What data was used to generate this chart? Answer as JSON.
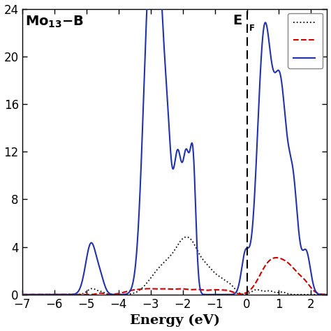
{
  "xlabel": "Energy (eV)",
  "xlim": [
    -7,
    2.5
  ],
  "ylim": [
    0,
    24
  ],
  "yticks": [
    0,
    4,
    8,
    12,
    16,
    20,
    24
  ],
  "xticks": [
    -7,
    -6,
    -5,
    -4,
    -3,
    -2,
    -1,
    0,
    1,
    2
  ],
  "ef_x": 0.0,
  "bg_color": "#ffffff",
  "line_black_color": "#111111",
  "line_red_color": "#cc0000",
  "line_blue_color": "#2233aa",
  "figsize": [
    4.74,
    4.74
  ],
  "dpi": 100
}
